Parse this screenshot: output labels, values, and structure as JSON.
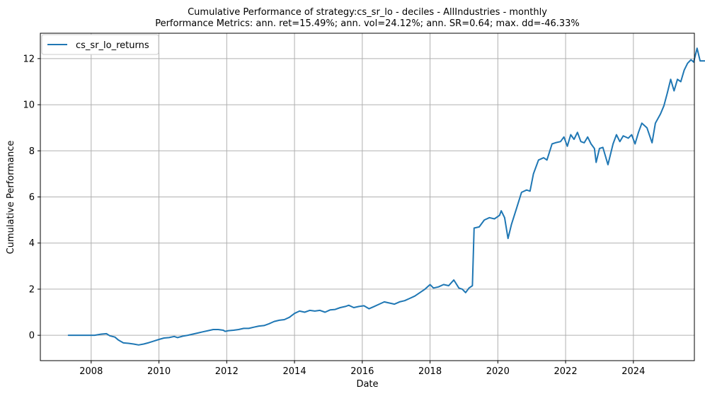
{
  "chart_data": {
    "type": "line",
    "title": "Cumulative Performance of strategy:cs_sr_lo - deciles - AllIndustries - monthly",
    "subtitle": "Performance Metrics: ann. ret=15.49%; ann. vol=24.12%; ann. SR=0.64; max. dd=-46.33%",
    "xlabel": "Date",
    "ylabel": "Cumulative Performance",
    "xlim": [
      2006.5,
      2025.8
    ],
    "ylim": [
      -1.1,
      13.1
    ],
    "xticks": [
      2008,
      2010,
      2012,
      2014,
      2016,
      2018,
      2020,
      2022,
      2024
    ],
    "yticks": [
      0,
      2,
      4,
      6,
      8,
      10,
      12
    ],
    "grid": true,
    "legend": "top-left",
    "series": [
      {
        "name": "cs_sr_lo_returns",
        "color": "#1f77b4",
        "points": [
          [
            2007.33,
            0.0
          ],
          [
            2007.6,
            0.0
          ],
          [
            2007.9,
            0.0
          ],
          [
            2008.1,
            0.0
          ],
          [
            2008.3,
            0.05
          ],
          [
            2008.45,
            0.07
          ],
          [
            2008.55,
            -0.02
          ],
          [
            2008.7,
            -0.08
          ],
          [
            2008.8,
            -0.2
          ],
          [
            2008.95,
            -0.33
          ],
          [
            2009.1,
            -0.35
          ],
          [
            2009.25,
            -0.38
          ],
          [
            2009.4,
            -0.42
          ],
          [
            2009.55,
            -0.38
          ],
          [
            2009.7,
            -0.32
          ],
          [
            2009.85,
            -0.25
          ],
          [
            2010.0,
            -0.18
          ],
          [
            2010.15,
            -0.12
          ],
          [
            2010.3,
            -0.1
          ],
          [
            2010.45,
            -0.05
          ],
          [
            2010.55,
            -0.1
          ],
          [
            2010.7,
            -0.04
          ],
          [
            2010.85,
            0.0
          ],
          [
            2011.0,
            0.05
          ],
          [
            2011.15,
            0.1
          ],
          [
            2011.3,
            0.15
          ],
          [
            2011.45,
            0.2
          ],
          [
            2011.6,
            0.25
          ],
          [
            2011.75,
            0.25
          ],
          [
            2011.9,
            0.22
          ],
          [
            2011.95,
            0.17
          ],
          [
            2012.05,
            0.2
          ],
          [
            2012.2,
            0.22
          ],
          [
            2012.35,
            0.25
          ],
          [
            2012.5,
            0.3
          ],
          [
            2012.65,
            0.3
          ],
          [
            2012.8,
            0.35
          ],
          [
            2012.95,
            0.4
          ],
          [
            2013.1,
            0.42
          ],
          [
            2013.25,
            0.5
          ],
          [
            2013.4,
            0.6
          ],
          [
            2013.55,
            0.65
          ],
          [
            2013.7,
            0.68
          ],
          [
            2013.85,
            0.78
          ],
          [
            2014.0,
            0.95
          ],
          [
            2014.15,
            1.05
          ],
          [
            2014.3,
            1.0
          ],
          [
            2014.45,
            1.08
          ],
          [
            2014.6,
            1.05
          ],
          [
            2014.75,
            1.08
          ],
          [
            2014.9,
            1.0
          ],
          [
            2015.05,
            1.1
          ],
          [
            2015.2,
            1.12
          ],
          [
            2015.35,
            1.2
          ],
          [
            2015.5,
            1.25
          ],
          [
            2015.6,
            1.3
          ],
          [
            2015.75,
            1.2
          ],
          [
            2015.9,
            1.25
          ],
          [
            2016.05,
            1.28
          ],
          [
            2016.2,
            1.15
          ],
          [
            2016.35,
            1.25
          ],
          [
            2016.5,
            1.35
          ],
          [
            2016.65,
            1.45
          ],
          [
            2016.8,
            1.4
          ],
          [
            2016.95,
            1.35
          ],
          [
            2017.1,
            1.45
          ],
          [
            2017.25,
            1.5
          ],
          [
            2017.4,
            1.6
          ],
          [
            2017.55,
            1.7
          ],
          [
            2017.7,
            1.85
          ],
          [
            2017.85,
            2.0
          ],
          [
            2018.0,
            2.2
          ],
          [
            2018.1,
            2.05
          ],
          [
            2018.25,
            2.1
          ],
          [
            2018.4,
            2.2
          ],
          [
            2018.55,
            2.15
          ],
          [
            2018.7,
            2.4
          ],
          [
            2018.85,
            2.05
          ],
          [
            2018.95,
            2.0
          ],
          [
            2019.05,
            1.85
          ],
          [
            2019.15,
            2.05
          ],
          [
            2019.25,
            2.15
          ],
          [
            2019.3,
            4.65
          ],
          [
            2019.45,
            4.7
          ],
          [
            2019.6,
            5.0
          ],
          [
            2019.75,
            5.1
          ],
          [
            2019.9,
            5.05
          ],
          [
            2020.05,
            5.2
          ],
          [
            2020.1,
            5.4
          ],
          [
            2020.2,
            5.1
          ],
          [
            2020.3,
            4.2
          ],
          [
            2020.4,
            4.8
          ],
          [
            2020.55,
            5.5
          ],
          [
            2020.7,
            6.2
          ],
          [
            2020.85,
            6.3
          ],
          [
            2020.95,
            6.25
          ],
          [
            2021.05,
            7.0
          ],
          [
            2021.2,
            7.6
          ],
          [
            2021.35,
            7.7
          ],
          [
            2021.45,
            7.6
          ],
          [
            2021.6,
            8.3
          ],
          [
            2021.7,
            8.35
          ],
          [
            2021.85,
            8.4
          ],
          [
            2021.95,
            8.6
          ],
          [
            2022.05,
            8.2
          ],
          [
            2022.15,
            8.7
          ],
          [
            2022.25,
            8.5
          ],
          [
            2022.35,
            8.8
          ],
          [
            2022.45,
            8.4
          ],
          [
            2022.55,
            8.35
          ],
          [
            2022.65,
            8.6
          ],
          [
            2022.75,
            8.3
          ],
          [
            2022.85,
            8.1
          ],
          [
            2022.9,
            7.5
          ],
          [
            2023.0,
            8.1
          ],
          [
            2023.1,
            8.15
          ],
          [
            2023.25,
            7.4
          ],
          [
            2023.4,
            8.3
          ],
          [
            2023.5,
            8.7
          ],
          [
            2023.6,
            8.4
          ],
          [
            2023.7,
            8.65
          ],
          [
            2023.85,
            8.55
          ],
          [
            2023.95,
            8.7
          ],
          [
            2024.05,
            8.3
          ],
          [
            2024.15,
            8.8
          ],
          [
            2024.25,
            9.2
          ],
          [
            2024.4,
            9.0
          ],
          [
            2024.55,
            8.35
          ],
          [
            2024.65,
            9.2
          ],
          [
            2024.8,
            9.6
          ],
          [
            2024.9,
            9.95
          ],
          [
            2025.0,
            10.5
          ],
          [
            2025.1,
            11.1
          ],
          [
            2025.2,
            10.6
          ],
          [
            2025.3,
            11.1
          ],
          [
            2025.4,
            11.0
          ],
          [
            2025.5,
            11.5
          ],
          [
            2025.6,
            11.8
          ],
          [
            2025.7,
            11.95
          ],
          [
            2025.78,
            11.85
          ],
          [
            2025.88,
            12.45
          ],
          [
            2025.97,
            11.9
          ],
          [
            2026.1,
            11.9
          ]
        ]
      }
    ]
  }
}
